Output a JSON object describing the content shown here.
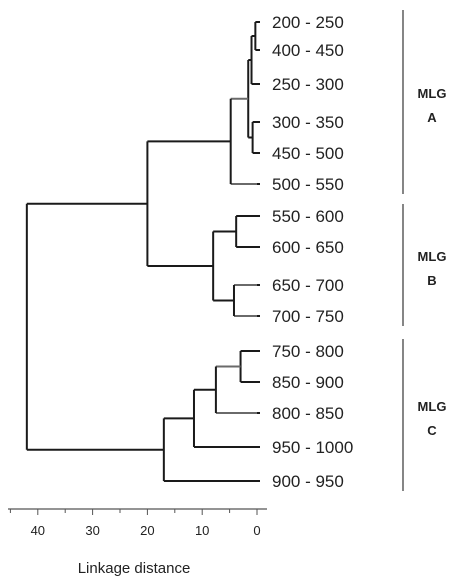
{
  "leaves": [
    "200 - 250",
    "400 - 450",
    "250 - 300",
    "300 - 350",
    "450 - 500",
    "500 - 550",
    "550 - 600",
    "600 - 650",
    "650 - 700",
    "700 - 750",
    "750 - 800",
    "850 - 900",
    "800 - 850",
    "950 - 1000",
    "900 - 950"
  ],
  "groups": [
    {
      "line1": "MLG",
      "line2": "A",
      "from": 0,
      "to": 5
    },
    {
      "line1": "MLG",
      "line2": "B",
      "from": 6,
      "to": 9
    },
    {
      "line1": "MLG",
      "line2": "C",
      "from": 10,
      "to": 14
    }
  ],
  "axis": {
    "label": "Linkage distance",
    "ticks": [
      40,
      30,
      20,
      10,
      0
    ],
    "range": [
      43,
      0
    ]
  },
  "merges": [
    {
      "a": "L0",
      "b": "L1",
      "h": 0.3,
      "id": "m1"
    },
    {
      "a": "m1",
      "b": "L2",
      "h": 1.0,
      "id": "m2"
    },
    {
      "a": "L3",
      "b": "L4",
      "h": 0.8,
      "id": "m3"
    },
    {
      "a": "m2",
      "b": "m3",
      "h": 1.6,
      "id": "m4"
    },
    {
      "a": "m4",
      "b": "L5",
      "h": 4.8,
      "id": "m5",
      "gray": true
    },
    {
      "a": "L6",
      "b": "L7",
      "h": 3.8,
      "id": "m6"
    },
    {
      "a": "L8",
      "b": "L9",
      "h": 4.2,
      "id": "m7",
      "gray": true
    },
    {
      "a": "m6",
      "b": "m7",
      "h": 8.0,
      "id": "m8"
    },
    {
      "a": "L10",
      "b": "L11",
      "h": 3.0,
      "id": "m9"
    },
    {
      "a": "m9",
      "b": "L12",
      "h": 7.5,
      "id": "m10",
      "gray": true
    },
    {
      "a": "m10",
      "b": "L13",
      "h": 11.5,
      "id": "m11"
    },
    {
      "a": "m11",
      "b": "L14",
      "h": 17.0,
      "id": "m12"
    },
    {
      "a": "m5",
      "b": "m8",
      "h": 20.0,
      "id": "m13"
    },
    {
      "a": "m13",
      "b": "m12",
      "h": 42.0,
      "id": "m14"
    }
  ]
}
